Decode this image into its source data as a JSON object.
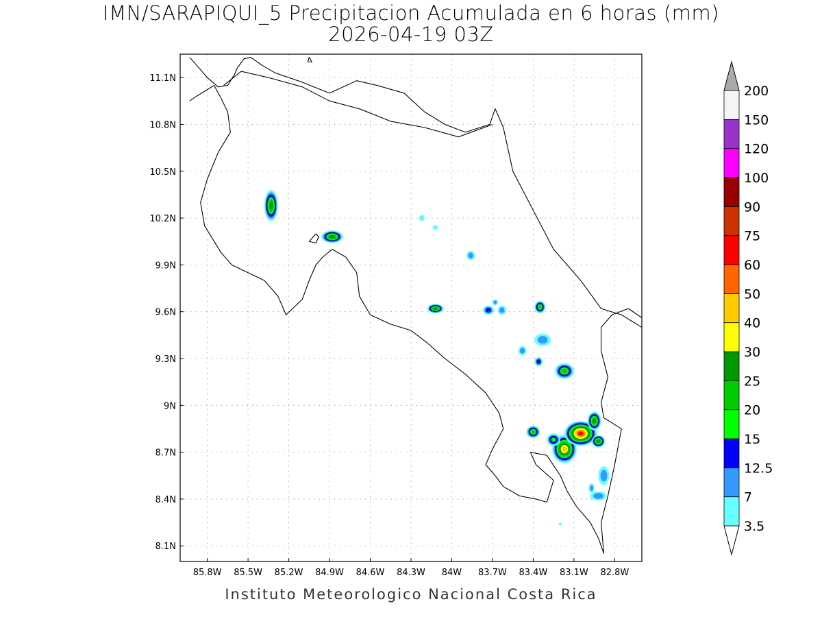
{
  "title": {
    "line1": "IMN/SARAPIQUI_5 Precipitacion Acumulada en 6 horas (mm)",
    "line2": "2026-04-19 03Z"
  },
  "footer": "Instituto Meteorologico Nacional Costa Rica",
  "map": {
    "lon_range": [
      -86.0,
      -82.6
    ],
    "lat_range": [
      8.0,
      11.25
    ],
    "lon_ticks": [
      {
        "value": -85.8,
        "label": "85.8W"
      },
      {
        "value": -85.5,
        "label": "85.5W"
      },
      {
        "value": -85.2,
        "label": "85.2W"
      },
      {
        "value": -84.9,
        "label": "84.9W"
      },
      {
        "value": -84.6,
        "label": "84.6W"
      },
      {
        "value": -84.3,
        "label": "84.3W"
      },
      {
        "value": -84.0,
        "label": "84W"
      },
      {
        "value": -83.7,
        "label": "83.7W"
      },
      {
        "value": -83.4,
        "label": "83.4W"
      },
      {
        "value": -83.1,
        "label": "83.1W"
      },
      {
        "value": -82.8,
        "label": "82.8W"
      }
    ],
    "lat_ticks": [
      {
        "value": 8.1,
        "label": "8.1N"
      },
      {
        "value": 8.4,
        "label": "8.4N"
      },
      {
        "value": 8.7,
        "label": "8.7N"
      },
      {
        "value": 9.0,
        "label": "9N"
      },
      {
        "value": 9.3,
        "label": "9.3N"
      },
      {
        "value": 9.6,
        "label": "9.6N"
      },
      {
        "value": 9.9,
        "label": "9.9N"
      },
      {
        "value": 10.2,
        "label": "10.2N"
      },
      {
        "value": 10.5,
        "label": "10.5N"
      },
      {
        "value": 10.8,
        "label": "10.8N"
      },
      {
        "value": 11.1,
        "label": "11.1N"
      }
    ],
    "grid": true,
    "coastline": [
      [
        -85.93,
        11.23
      ],
      [
        -85.8,
        11.1
      ],
      [
        -85.72,
        11.04
      ],
      [
        -85.65,
        11.05
      ],
      [
        -85.6,
        11.12
      ],
      [
        -85.58,
        11.16
      ],
      [
        -85.53,
        11.22
      ],
      [
        -85.48,
        11.23
      ],
      [
        -85.4,
        11.18
      ],
      [
        -85.3,
        11.13
      ],
      [
        -85.1,
        11.07
      ],
      [
        -84.9,
        11.0
      ],
      [
        -84.7,
        11.08
      ],
      [
        -84.55,
        11.05
      ],
      [
        -84.35,
        11.0
      ],
      [
        -84.2,
        10.88
      ],
      [
        -84.05,
        10.8
      ],
      [
        -83.9,
        10.75
      ],
      [
        -83.72,
        10.8
      ],
      [
        -83.68,
        10.9
      ],
      [
        -83.62,
        10.78
      ],
      [
        -83.55,
        10.5
      ],
      [
        -83.4,
        10.25
      ],
      [
        -83.25,
        10.0
      ],
      [
        -83.05,
        9.8
      ],
      [
        -82.9,
        9.62
      ],
      [
        -82.75,
        9.58
      ],
      [
        -82.6,
        9.5
      ]
    ],
    "coast_outline": [
      [
        -85.93,
        10.95
      ],
      [
        -85.88,
        10.98
      ],
      [
        -85.75,
        11.05
      ],
      [
        -85.7,
        10.97
      ],
      [
        -85.65,
        10.88
      ],
      [
        -85.63,
        10.75
      ],
      [
        -85.72,
        10.62
      ],
      [
        -85.8,
        10.45
      ],
      [
        -85.85,
        10.3
      ],
      [
        -85.82,
        10.15
      ],
      [
        -85.7,
        9.98
      ],
      [
        -85.62,
        9.9
      ],
      [
        -85.5,
        9.85
      ],
      [
        -85.38,
        9.8
      ],
      [
        -85.28,
        9.7
      ],
      [
        -85.22,
        9.58
      ],
      [
        -85.1,
        9.68
      ],
      [
        -85.05,
        9.8
      ],
      [
        -85.0,
        9.9
      ],
      [
        -84.95,
        9.95
      ],
      [
        -84.88,
        10.0
      ],
      [
        -84.78,
        9.95
      ],
      [
        -84.7,
        9.85
      ],
      [
        -84.68,
        9.7
      ],
      [
        -84.6,
        9.58
      ],
      [
        -84.45,
        9.52
      ],
      [
        -84.3,
        9.48
      ],
      [
        -84.18,
        9.4
      ],
      [
        -84.05,
        9.3
      ],
      [
        -83.9,
        9.2
      ],
      [
        -83.75,
        9.08
      ],
      [
        -83.65,
        8.95
      ],
      [
        -83.62,
        8.85
      ],
      [
        -83.7,
        8.72
      ],
      [
        -83.75,
        8.62
      ],
      [
        -83.68,
        8.55
      ],
      [
        -83.62,
        8.48
      ],
      [
        -83.5,
        8.42
      ],
      [
        -83.38,
        8.4
      ],
      [
        -83.3,
        8.38
      ],
      [
        -83.25,
        8.52
      ],
      [
        -83.38,
        8.62
      ],
      [
        -83.42,
        8.7
      ],
      [
        -83.3,
        8.68
      ],
      [
        -83.2,
        8.55
      ],
      [
        -83.15,
        8.45
      ],
      [
        -83.08,
        8.35
      ],
      [
        -82.98,
        8.25
      ],
      [
        -82.92,
        8.15
      ],
      [
        -82.88,
        8.05
      ]
    ],
    "border_north": [
      [
        -85.68,
        11.05
      ],
      [
        -85.55,
        11.14
      ],
      [
        -85.35,
        11.1
      ],
      [
        -85.1,
        11.04
      ],
      [
        -84.9,
        10.95
      ],
      [
        -84.68,
        10.9
      ],
      [
        -84.45,
        10.82
      ],
      [
        -84.2,
        10.78
      ],
      [
        -83.95,
        10.72
      ],
      [
        -83.7,
        10.8
      ]
    ],
    "border_south": [
      [
        -82.58,
        9.55
      ],
      [
        -82.7,
        9.62
      ],
      [
        -82.82,
        9.58
      ],
      [
        -82.9,
        9.5
      ],
      [
        -82.9,
        9.35
      ],
      [
        -82.85,
        9.18
      ],
      [
        -82.9,
        9.02
      ],
      [
        -82.88,
        8.92
      ],
      [
        -82.75,
        8.85
      ],
      [
        -82.8,
        8.62
      ],
      [
        -82.85,
        8.42
      ],
      [
        -82.9,
        8.25
      ],
      [
        -82.88,
        8.05
      ]
    ],
    "lake": [
      [
        -85.0,
        10.1
      ],
      [
        -85.05,
        10.05
      ],
      [
        -85.0,
        10.04
      ],
      [
        -84.98,
        10.08
      ]
    ],
    "islet": [
      [
        -85.06,
        11.2
      ],
      [
        -85.03,
        11.2
      ],
      [
        -85.05,
        11.23
      ]
    ]
  },
  "legend": {
    "levels": [
      "3.5",
      "7",
      "12.5",
      "15",
      "20",
      "25",
      "30",
      "40",
      "50",
      "60",
      "75",
      "90",
      "100",
      "120",
      "150",
      "200"
    ],
    "colors": [
      "#ffffff",
      "#66ffff",
      "#3399ff",
      "#0000ff",
      "#00ff00",
      "#00cc00",
      "#009900",
      "#ffff00",
      "#ffcc00",
      "#ff6600",
      "#ff0000",
      "#cc3300",
      "#990000",
      "#ff00ff",
      "#9933cc",
      "#f5f5f5",
      "#aaaaaa"
    ]
  },
  "chart_data": {
    "type": "heatmap",
    "title": "IMN/SARAPIQUI_5 Precipitacion Acumulada en 6 horas (mm)",
    "subtitle": "2026-04-19 03Z",
    "xlim": [
      -86.0,
      -82.6
    ],
    "ylim": [
      8.0,
      11.25
    ],
    "units": "mm",
    "cells": [
      {
        "lon": -85.33,
        "lat": 10.28,
        "rx": 0.05,
        "ry": 0.1,
        "max_level": 6
      },
      {
        "lon": -84.88,
        "lat": 10.08,
        "rx": 0.08,
        "ry": 0.04,
        "max_level": 6
      },
      {
        "lon": -84.12,
        "lat": 9.62,
        "rx": 0.06,
        "ry": 0.03,
        "max_level": 6
      },
      {
        "lon": -83.35,
        "lat": 9.63,
        "rx": 0.04,
        "ry": 0.04,
        "max_level": 5
      },
      {
        "lon": -83.73,
        "lat": 9.61,
        "rx": 0.04,
        "ry": 0.03,
        "max_level": 3
      },
      {
        "lon": -83.86,
        "lat": 9.96,
        "rx": 0.03,
        "ry": 0.03,
        "max_level": 2
      },
      {
        "lon": -83.63,
        "lat": 9.61,
        "rx": 0.03,
        "ry": 0.03,
        "max_level": 2
      },
      {
        "lon": -83.68,
        "lat": 9.66,
        "rx": 0.02,
        "ry": 0.02,
        "max_level": 2
      },
      {
        "lon": -84.22,
        "lat": 10.2,
        "rx": 0.02,
        "ry": 0.02,
        "max_level": 1
      },
      {
        "lon": -84.12,
        "lat": 10.14,
        "rx": 0.02,
        "ry": 0.015,
        "max_level": 1
      },
      {
        "lon": -83.33,
        "lat": 9.42,
        "rx": 0.06,
        "ry": 0.04,
        "max_level": 2
      },
      {
        "lon": -83.48,
        "lat": 9.35,
        "rx": 0.03,
        "ry": 0.03,
        "max_level": 2
      },
      {
        "lon": -83.36,
        "lat": 9.28,
        "rx": 0.03,
        "ry": 0.03,
        "max_level": 3
      },
      {
        "lon": -83.17,
        "lat": 9.22,
        "rx": 0.07,
        "ry": 0.05,
        "max_level": 5
      },
      {
        "lon": -83.4,
        "lat": 8.83,
        "rx": 0.05,
        "ry": 0.04,
        "max_level": 5
      },
      {
        "lon": -83.17,
        "lat": 8.72,
        "rx": 0.09,
        "ry": 0.09,
        "max_level": 8
      },
      {
        "lon": -83.05,
        "lat": 8.82,
        "rx": 0.12,
        "ry": 0.08,
        "max_level": 10
      },
      {
        "lon": -82.95,
        "lat": 8.9,
        "rx": 0.05,
        "ry": 0.06,
        "max_level": 6
      },
      {
        "lon": -82.92,
        "lat": 8.77,
        "rx": 0.05,
        "ry": 0.04,
        "max_level": 6
      },
      {
        "lon": -83.25,
        "lat": 8.78,
        "rx": 0.05,
        "ry": 0.04,
        "max_level": 4
      },
      {
        "lon": -82.88,
        "lat": 8.55,
        "rx": 0.04,
        "ry": 0.06,
        "max_level": 2
      },
      {
        "lon": -82.92,
        "lat": 8.42,
        "rx": 0.06,
        "ry": 0.03,
        "max_level": 2
      },
      {
        "lon": -82.97,
        "lat": 8.47,
        "rx": 0.02,
        "ry": 0.03,
        "max_level": 2
      },
      {
        "lon": -83.2,
        "lat": 8.24,
        "rx": 0.01,
        "ry": 0.01,
        "max_level": 1
      }
    ]
  }
}
